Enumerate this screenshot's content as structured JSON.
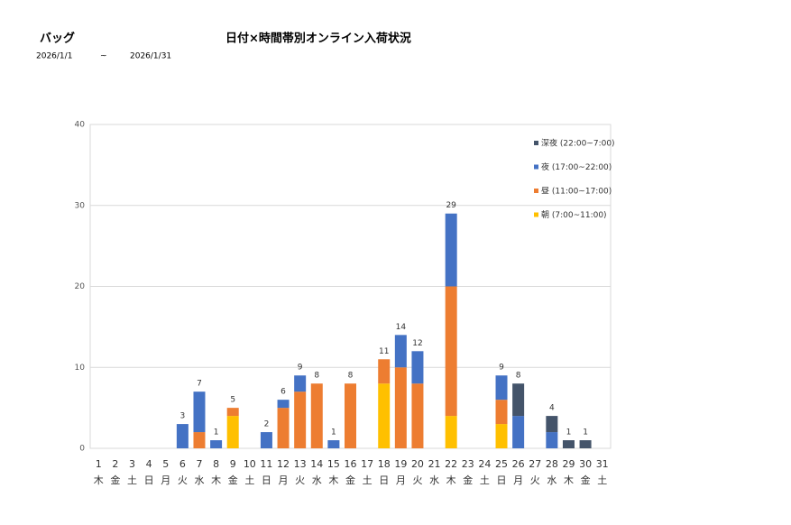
{
  "header": {
    "category": "バッグ",
    "date_from": "2026/1/1",
    "date_sep": "~",
    "date_to": "2026/1/31"
  },
  "chart_data": {
    "type": "stacked-bar",
    "title": "日付×時間帯別オンライン入荷状況",
    "categories": [
      "1",
      "2",
      "3",
      "4",
      "5",
      "6",
      "7",
      "8",
      "9",
      "10",
      "11",
      "12",
      "13",
      "14",
      "15",
      "16",
      "17",
      "18",
      "19",
      "20",
      "21",
      "22",
      "23",
      "24",
      "25",
      "26",
      "27",
      "28",
      "29",
      "30",
      "31"
    ],
    "weekdays": [
      "木",
      "金",
      "土",
      "日",
      "月",
      "火",
      "水",
      "木",
      "金",
      "土",
      "日",
      "月",
      "火",
      "水",
      "木",
      "金",
      "土",
      "日",
      "月",
      "火",
      "水",
      "木",
      "金",
      "土",
      "日",
      "月",
      "火",
      "水",
      "木",
      "金",
      "土"
    ],
    "series": [
      {
        "name": "朝 (7:00~11:00)",
        "color": "#ffc000",
        "values": [
          0,
          0,
          0,
          0,
          0,
          0,
          0,
          0,
          4,
          0,
          0,
          0,
          0,
          0,
          0,
          0,
          0,
          8,
          0,
          0,
          0,
          4,
          0,
          0,
          3,
          0,
          0,
          0,
          0,
          0,
          0
        ]
      },
      {
        "name": "昼 (11:00~17:00)",
        "color": "#ed7d31",
        "values": [
          0,
          0,
          0,
          0,
          0,
          0,
          2,
          0,
          1,
          0,
          0,
          5,
          7,
          8,
          0,
          8,
          0,
          3,
          10,
          8,
          0,
          16,
          0,
          0,
          3,
          0,
          0,
          0,
          0,
          0,
          0
        ]
      },
      {
        "name": "夜 (17:00~22:00)",
        "color": "#4472c4",
        "values": [
          0,
          0,
          0,
          0,
          0,
          3,
          5,
          1,
          0,
          0,
          2,
          1,
          2,
          0,
          1,
          0,
          0,
          0,
          4,
          4,
          0,
          9,
          0,
          0,
          3,
          4,
          0,
          2,
          0,
          0,
          0
        ]
      },
      {
        "name": "深夜 (22:00~7:00)",
        "color": "#44546a",
        "values": [
          0,
          0,
          0,
          0,
          0,
          0,
          0,
          0,
          0,
          0,
          0,
          0,
          0,
          0,
          0,
          0,
          0,
          0,
          0,
          0,
          0,
          0,
          0,
          0,
          0,
          4,
          0,
          2,
          1,
          1,
          0
        ]
      }
    ],
    "totals": [
      null,
      null,
      null,
      null,
      null,
      3,
      7,
      1,
      5,
      null,
      2,
      6,
      9,
      8,
      1,
      8,
      null,
      11,
      14,
      12,
      null,
      29,
      null,
      null,
      9,
      8,
      null,
      4,
      1,
      1,
      null
    ],
    "ylim": [
      0,
      40
    ],
    "yticks": [
      0,
      10,
      20,
      30,
      40
    ],
    "grid": true,
    "legend": "top-right"
  }
}
